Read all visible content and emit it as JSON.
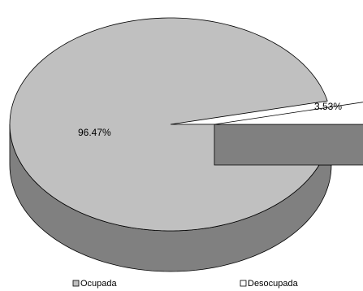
{
  "chart_data": {
    "type": "pie",
    "style": "3d-exploded",
    "categories": [
      "Ocupada",
      "Desocupada"
    ],
    "values": [
      96.47,
      3.53
    ],
    "data_labels": [
      "96.47%",
      "3.53%"
    ],
    "colors": {
      "Ocupada": "#c0c0c0",
      "Desocupada": "#ffffff",
      "outline": "#000000",
      "side_dark": "#808080"
    },
    "legend_position": "bottom",
    "title": "",
    "grid": false
  }
}
